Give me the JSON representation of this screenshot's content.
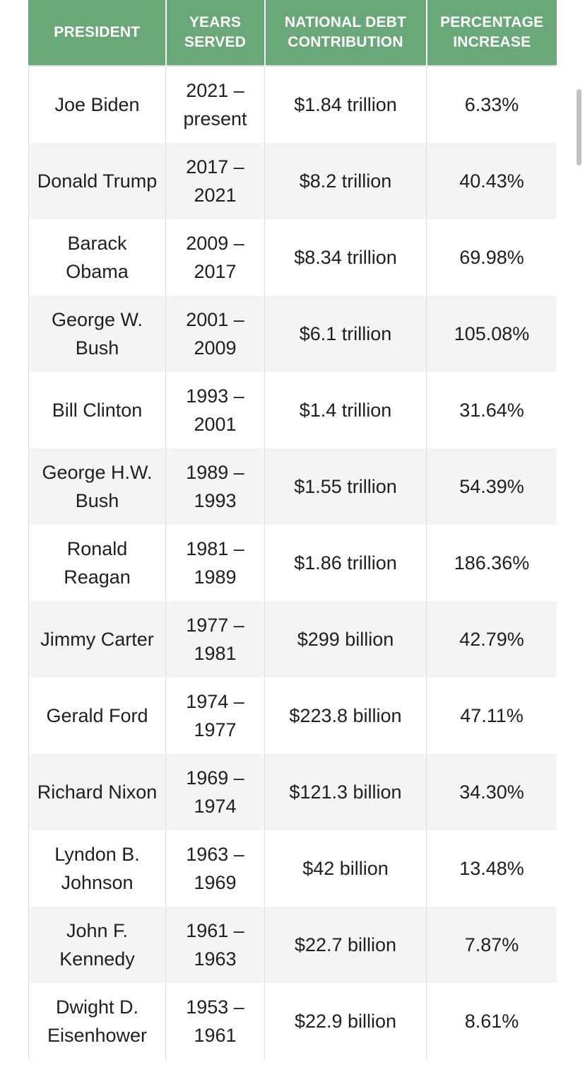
{
  "columns": [
    "PRESIDENT",
    "YEARS SERVED",
    "NATIONAL DEBT CONTRIBUTION",
    "PERCENTAGE INCREASE"
  ],
  "rows": [
    {
      "president": "Joe Biden",
      "years": "2021 – present",
      "debt": "$1.84 trillion",
      "pct": "6.33%"
    },
    {
      "president": "Donald Trump",
      "years": "2017 – 2021",
      "debt": "$8.2 trillion",
      "pct": "40.43%"
    },
    {
      "president": "Barack Obama",
      "years": "2009 – 2017",
      "debt": "$8.34 trillion",
      "pct": "69.98%"
    },
    {
      "president": "George W. Bush",
      "years": "2001 – 2009",
      "debt": "$6.1 trillion",
      "pct": "105.08%"
    },
    {
      "president": "Bill Clinton",
      "years": "1993 – 2001",
      "debt": "$1.4 trillion",
      "pct": "31.64%"
    },
    {
      "president": "George H.W. Bush",
      "years": "1989 – 1993",
      "debt": "$1.55 trillion",
      "pct": "54.39%"
    },
    {
      "president": "Ronald Reagan",
      "years": "1981 – 1989",
      "debt": "$1.86 trillion",
      "pct": "186.36%"
    },
    {
      "president": "Jimmy Carter",
      "years": "1977 – 1981",
      "debt": "$299 billion",
      "pct": "42.79%"
    },
    {
      "president": "Gerald Ford",
      "years": "1974 – 1977",
      "debt": "$223.8 billion",
      "pct": "47.11%"
    },
    {
      "president": "Richard Nixon",
      "years": "1969 – 1974",
      "debt": "$121.3 billion",
      "pct": "34.30%"
    },
    {
      "president": "Lyndon B. Johnson",
      "years": "1963 – 1969",
      "debt": "$42 billion",
      "pct": "13.48%"
    },
    {
      "president": "John F. Kennedy",
      "years": "1961 – 1963",
      "debt": "$22.7 billion",
      "pct": "7.87%"
    },
    {
      "president": "Dwight D. Eisenhower",
      "years": "1953 – 1961",
      "debt": "$22.9 billion",
      "pct": "8.61%"
    }
  ],
  "colors": {
    "header_bg": "#6aa87a",
    "header_text": "#ffffff",
    "row_alt_bg": "#f4f4f4",
    "border": "#dcdcdc"
  }
}
